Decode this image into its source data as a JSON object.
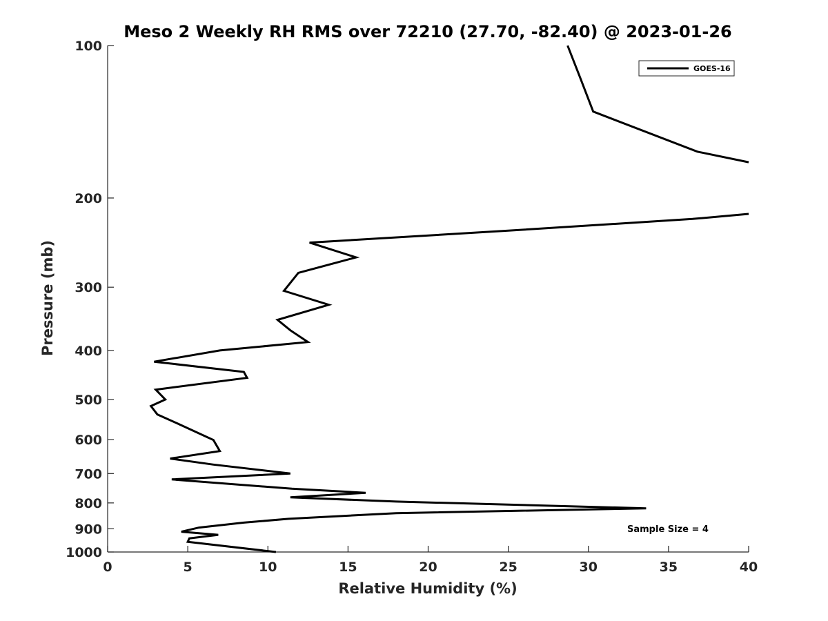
{
  "chart_data": {
    "type": "line",
    "title": "Meso 2 Weekly RH RMS over 72210 (27.70, -82.40) @ 2023-01-26",
    "xlabel": "Relative Humidity (%)",
    "ylabel": "Pressure (mb)",
    "xlim": [
      0,
      40
    ],
    "ylim": [
      1000,
      100
    ],
    "yscale": "log",
    "xticks": [
      "0",
      "5",
      "10",
      "15",
      "20",
      "25",
      "30",
      "35",
      "40"
    ],
    "yticks": [
      "100",
      "200",
      "300",
      "400",
      "500",
      "600",
      "700",
      "800",
      "900",
      "1000"
    ],
    "grid": false,
    "legend": {
      "placement": "top-right",
      "entries": [
        "GOES-16"
      ]
    },
    "annotation": "Sample Size = 4",
    "series": [
      {
        "name": "GOES-16",
        "color": "#000000",
        "segments": [
          [
            [
              28.7,
              100
            ],
            [
              29.5,
              116
            ],
            [
              30.3,
              135
            ],
            [
              36.8,
              162
            ],
            [
              40.0,
              170
            ]
          ],
          [
            [
              40.0,
              215
            ],
            [
              36.5,
              220
            ],
            [
              25.0,
              232
            ],
            [
              12.6,
              245
            ],
            [
              15.5,
              262
            ],
            [
              11.9,
              281
            ],
            [
              11.0,
              305
            ],
            [
              13.8,
              325
            ],
            [
              10.6,
              348
            ],
            [
              11.4,
              365
            ],
            [
              12.5,
              385
            ],
            [
              7.0,
              400
            ],
            [
              2.9,
              421
            ],
            [
              8.5,
              441
            ],
            [
              8.7,
              453
            ],
            [
              3.0,
              478
            ],
            [
              3.6,
              500
            ],
            [
              2.7,
              515
            ],
            [
              3.1,
              535
            ],
            [
              4.5,
              560
            ],
            [
              6.6,
              601
            ],
            [
              7.0,
              632
            ],
            [
              3.9,
              654
            ],
            [
              6.6,
              672
            ],
            [
              11.4,
              700
            ],
            [
              4.0,
              719
            ],
            [
              11.5,
              750
            ],
            [
              16.1,
              764
            ],
            [
              11.4,
              780
            ],
            [
              18.0,
              795
            ],
            [
              33.6,
              820
            ],
            [
              18.0,
              838
            ],
            [
              11.3,
              860
            ],
            [
              8.5,
              875
            ],
            [
              5.7,
              895
            ],
            [
              4.6,
              912
            ],
            [
              6.9,
              925
            ],
            [
              5.1,
              940
            ],
            [
              5.0,
              955
            ],
            [
              10.5,
              1000
            ]
          ]
        ]
      }
    ]
  }
}
